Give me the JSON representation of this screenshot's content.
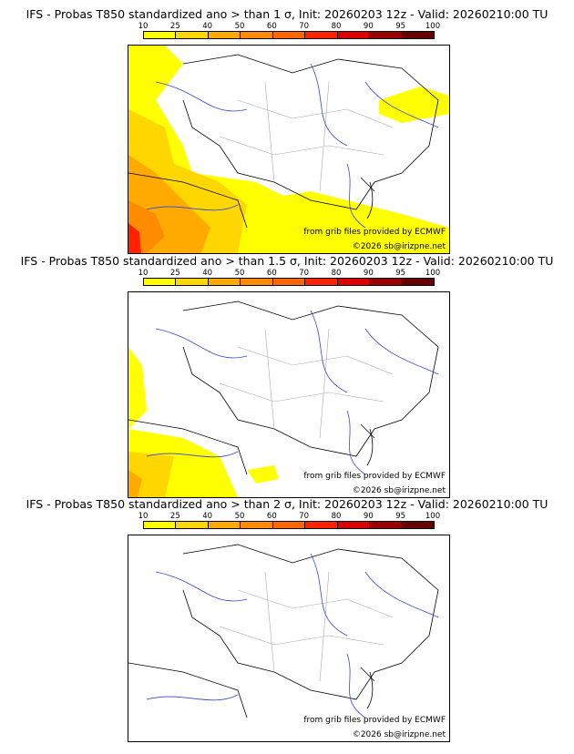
{
  "colorbar": {
    "ticks": [
      "10",
      "25",
      "40",
      "50",
      "60",
      "70",
      "80",
      "90",
      "95",
      "100"
    ],
    "colors": [
      "#ffff00",
      "#ffd700",
      "#ffaa00",
      "#ff8c00",
      "#ff6600",
      "#ff2200",
      "#dd0000",
      "#990000",
      "#660000"
    ]
  },
  "credits": {
    "source": "from grib files provided by ECMWF",
    "copyright": "©2026 sb@irizpne.net"
  },
  "chart_data": [
    {
      "type": "heatmap",
      "title": "IFS - Probas T850  standardized ano > than 1 σ, Init: 20260203 12z - Valid: 20260210:00 TU",
      "legend": "colorbar top",
      "max_prob_band": "70-80",
      "regions": [
        "Atlantic west of France (10-40%)",
        "SW France / Pyrenees / Spain (10-80%)",
        "Mediterranean south (10-25%)",
        "Northeast Alps region (10-25%)"
      ]
    },
    {
      "type": "heatmap",
      "title": "IFS - Probas T850  standardized ano > than 1.5 σ, Init: 20260203 12z - Valid: 20260210:00 TU",
      "legend": "colorbar top",
      "max_prob_band": "25-40",
      "regions": [
        "Atlantic west coast (10-25%)",
        "SW corner Spain (10-40%)",
        "Balearic area (10-25%)"
      ]
    },
    {
      "type": "heatmap",
      "title": "IFS - Probas T850  standardized ano > than 2 σ, Init: 20260203 12z - Valid: 20260210:00 TU",
      "legend": "colorbar top",
      "max_prob_band": "none",
      "regions": []
    }
  ]
}
